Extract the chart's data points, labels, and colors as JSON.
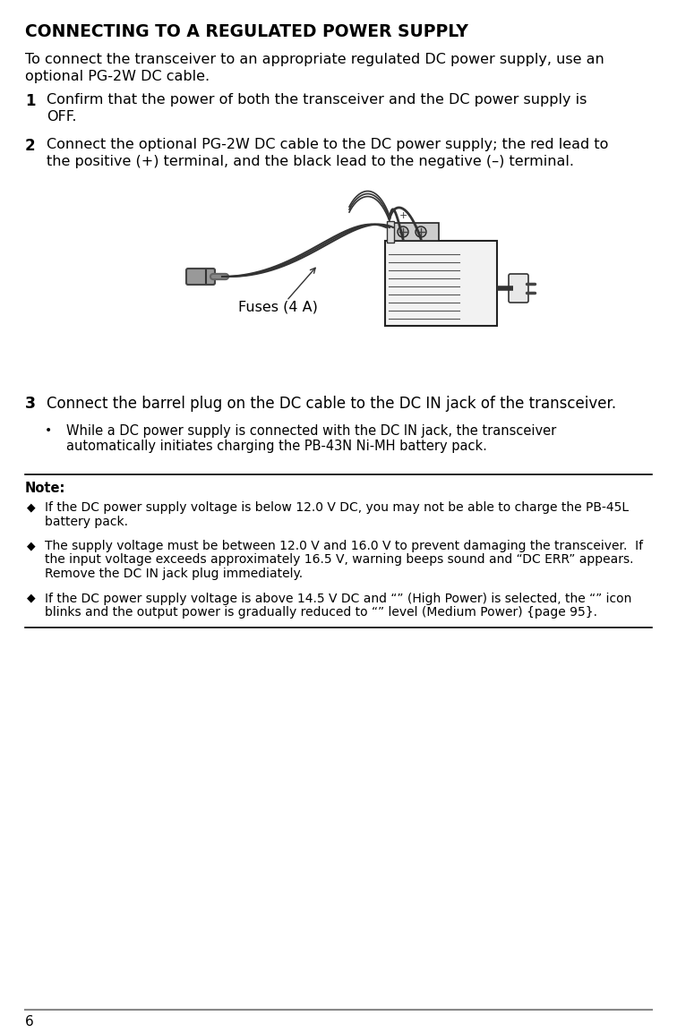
{
  "title": "CONNECTING TO A REGULATED POWER SUPPLY",
  "bg_color": "#ffffff",
  "text_color": "#000000",
  "intro_line1": "To connect the transceiver to an appropriate regulated DC power supply, use an",
  "intro_line2": "optional PG-2W DC cable.",
  "step1_num": "1",
  "step1_line1": "Confirm that the power of both the transceiver and the DC power supply is",
  "step1_line2": "OFF.",
  "step2_num": "2",
  "step2_line1": "Connect the optional PG-2W DC cable to the DC power supply; the red lead to",
  "step2_line2": "the positive (+) terminal, and the black lead to the negative (–) terminal.",
  "fuses_label": "Fuses (4 A)",
  "step3_num": "3",
  "step3_line1": "Connect the barrel plug on the DC cable to the DC IN jack of the transceiver.",
  "bullet_char": "•",
  "bullet_line1": "While a DC power supply is connected with the DC IN jack, the transceiver",
  "bullet_line2": "automatically initiates charging the PB-43N Ni-MH battery pack.",
  "note_label": "Note:",
  "diamond": "◆",
  "note1_line1": "If the DC power supply voltage is below 12.0 V DC, you may not be able to charge the PB-45L",
  "note1_line2": "battery pack.",
  "note2_line1": "The supply voltage must be between 12.0 V and 16.0 V to prevent damaging the transceiver.  If",
  "note2_line2": "the input voltage exceeds approximately 16.5 V, warning beeps sound and “DC ERR” appears.",
  "note2_line3": "Remove the DC IN jack plug immediately.",
  "note3_line1": "If the DC power supply voltage is above 14.5 V DC and “” (High Power) is selected, the “” icon",
  "note3_line2": "blinks and the output power is gradually reduced to “” level (Medium Power) {page 95}.",
  "page_number": "6"
}
